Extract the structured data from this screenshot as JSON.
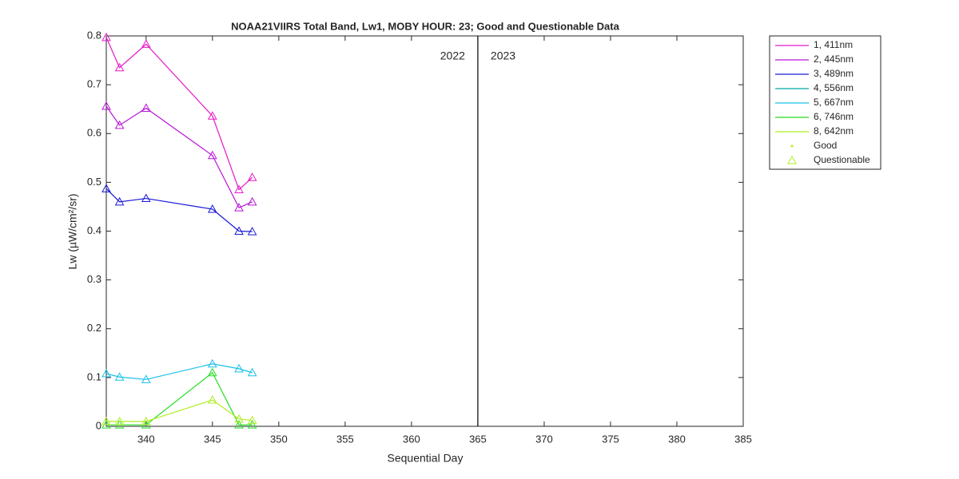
{
  "chart_data": {
    "type": "line",
    "title": "NOAA21VIIRS Total Band,  Lw1, MOBY HOUR: 23;  Good and Questionable Data",
    "xlabel": "Sequential Day",
    "ylabel": "Lw (µW/cm²/sr)",
    "xlim": [
      337,
      385
    ],
    "xticks": [
      340,
      345,
      350,
      355,
      360,
      365,
      370,
      375,
      380,
      385
    ],
    "ylim": [
      0,
      0.8
    ],
    "yticks": [
      0,
      0.1,
      0.2,
      0.3,
      0.4,
      0.5,
      0.6,
      0.7,
      0.8
    ],
    "x": [
      337,
      338,
      340,
      345,
      347,
      348
    ],
    "series": [
      {
        "name": "1, 411nm",
        "color": "#e619c9",
        "values": [
          0.797,
          0.735,
          0.783,
          0.636,
          0.485,
          0.51
        ]
      },
      {
        "name": "2, 445nm",
        "color": "#b814d8",
        "values": [
          0.656,
          0.617,
          0.652,
          0.555,
          0.448,
          0.46
        ]
      },
      {
        "name": "3, 489nm",
        "color": "#1a1ad6",
        "values": [
          0.487,
          0.46,
          0.467,
          0.445,
          0.4,
          0.399
        ]
      },
      {
        "name": "4, 556nm",
        "color": "#00a8a8",
        "values": [
          null,
          null,
          null,
          null,
          null,
          null
        ]
      },
      {
        "name": "5, 667nm",
        "color": "#18c0e8",
        "values": [
          0.108,
          0.101,
          0.096,
          0.128,
          0.118,
          0.11
        ]
      },
      {
        "name": "6, 746nm",
        "color": "#22dd22",
        "values": [
          0.003,
          0.003,
          0.003,
          0.11,
          0.003,
          0.003
        ]
      },
      {
        "name": "8, 642nm",
        "color": "#b0ee22",
        "values": [
          0.01,
          0.01,
          0.01,
          0.054,
          0.015,
          0.012
        ]
      }
    ],
    "marker_legend": [
      "Good",
      "Questionable"
    ],
    "divider_x": 365,
    "annotations": [
      "2022",
      "2023"
    ]
  }
}
